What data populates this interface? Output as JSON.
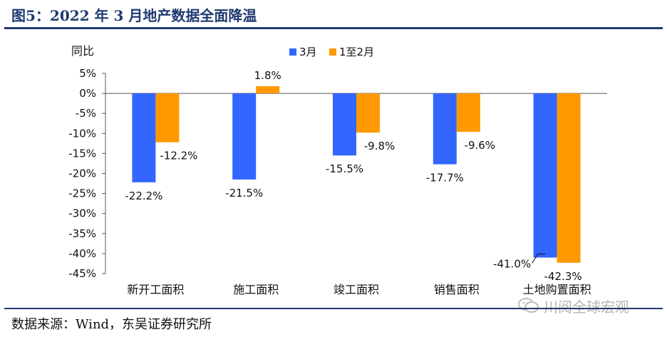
{
  "header": {
    "title": "图5：2022 年 3 月地产数据全面降温"
  },
  "footer": {
    "source": "数据来源：Wind，东吴证券研究所"
  },
  "watermark": {
    "text": "川阅全球宏观",
    "icon": "wechat-icon"
  },
  "chart_data": {
    "type": "bar",
    "title": "",
    "ylabel": "同比",
    "ylim": [
      -45,
      5
    ],
    "yticks": [
      "5%",
      "0%",
      "-5%",
      "-10%",
      "-15%",
      "-20%",
      "-25%",
      "-30%",
      "-35%",
      "-40%",
      "-45%"
    ],
    "categories": [
      "新开工面积",
      "施工面积",
      "竣工面积",
      "销售面积",
      "土地购置面积"
    ],
    "series": [
      {
        "name": "3月",
        "color": "#3366ff",
        "values": [
          -22.2,
          -21.5,
          -15.5,
          -17.7,
          -41.0
        ],
        "labels": [
          "-22.2%",
          "-21.5%",
          "-15.5%",
          "-17.7%",
          "-41.0%"
        ]
      },
      {
        "name": "1至2月",
        "color": "#ff9900",
        "values": [
          -12.2,
          1.8,
          -9.8,
          -9.6,
          -42.3
        ],
        "labels": [
          "-12.2%",
          "1.8%",
          "-9.8%",
          "-9.6%",
          "-42.3%"
        ]
      }
    ],
    "legend_position": "top-center",
    "grid": false
  }
}
